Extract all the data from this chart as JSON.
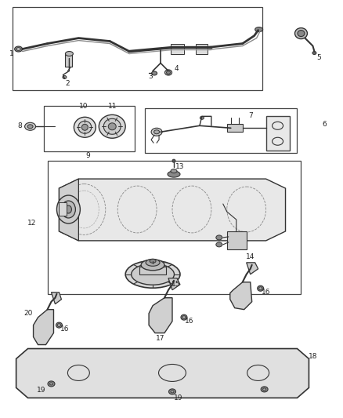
{
  "bg_color": "#ffffff",
  "line_color": "#333333",
  "text_color": "#222222",
  "fig_width": 4.38,
  "fig_height": 5.33,
  "dpi": 100
}
